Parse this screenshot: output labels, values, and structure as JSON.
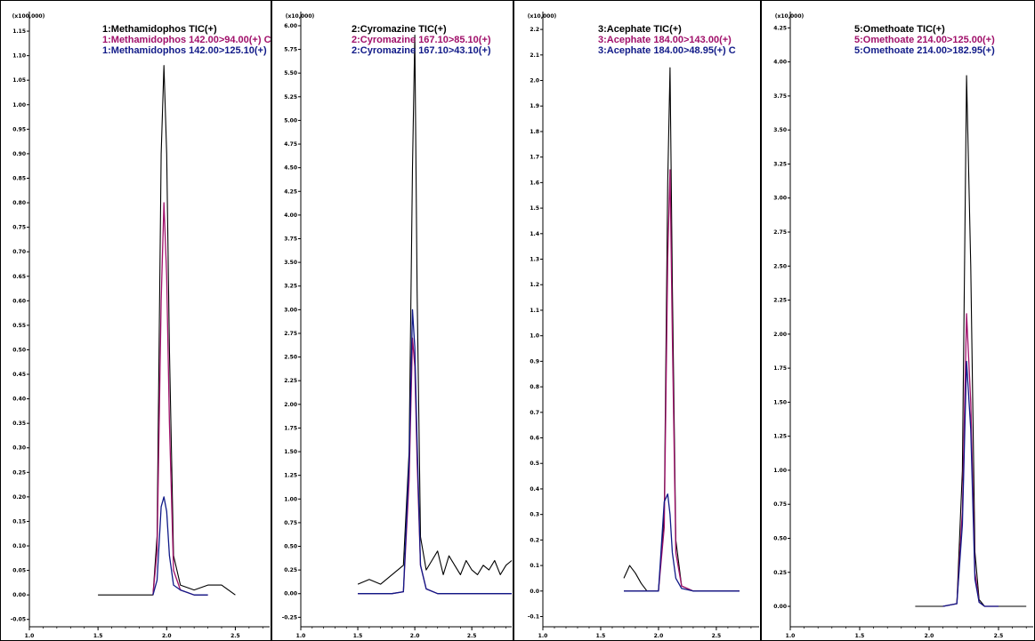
{
  "colors": {
    "tic": "#000000",
    "quant": "#a0106a",
    "qual": "#101a88",
    "frame": "#000000"
  },
  "chart_data": [
    {
      "type": "line",
      "scale_label": "(x100,000)",
      "ylim": [
        -0.065,
        1.19
      ],
      "xlim": [
        1.0,
        2.75
      ],
      "y_ticks": [
        -0.05,
        0.0,
        0.05,
        0.1,
        0.15,
        0.2,
        0.25,
        0.3,
        0.35,
        0.4,
        0.45,
        0.5,
        0.55,
        0.6,
        0.65,
        0.7,
        0.75,
        0.8,
        0.85,
        0.9,
        0.95,
        1.0,
        1.05,
        1.1,
        1.15
      ],
      "y_tick_labels": [
        "-0.05",
        "0.00",
        "0.05",
        "0.10",
        "0.15",
        "0.20",
        "0.25",
        "0.30",
        "0.35",
        "0.40",
        "0.45",
        "0.50",
        "0.55",
        "0.60",
        "0.65",
        "0.70",
        "0.75",
        "0.80",
        "0.85",
        "0.90",
        "0.95",
        "1.00",
        "1.05",
        "1.10",
        "1.15"
      ],
      "x_ticks": [
        1.0,
        1.5,
        2.0,
        2.5
      ],
      "x_tick_labels": [
        "1.0",
        "1.5",
        "2.0",
        "2.5"
      ],
      "legend": [
        "1:Methamidophos TIC(+)",
        "1:Methamidophos 142.00>94.00(+) C",
        "1:Methamidophos 142.00>125.10(+)"
      ],
      "series": [
        {
          "x": [
            1.5,
            1.9,
            1.93,
            1.96,
            1.98,
            2.0,
            2.02,
            2.05,
            2.1,
            2.2,
            2.3,
            2.4,
            2.5
          ],
          "y": [
            0.0,
            0.0,
            0.12,
            0.9,
            1.08,
            0.9,
            0.5,
            0.08,
            0.02,
            0.01,
            0.02,
            0.02,
            0.0
          ]
        },
        {
          "x": [
            1.9,
            1.93,
            1.96,
            1.98,
            2.0,
            2.02,
            2.05,
            2.1,
            2.2,
            2.3
          ],
          "y": [
            0.0,
            0.09,
            0.6,
            0.8,
            0.65,
            0.35,
            0.05,
            0.01,
            0.0,
            0.0
          ]
        },
        {
          "x": [
            1.9,
            1.93,
            1.96,
            1.98,
            2.0,
            2.02,
            2.05,
            2.1,
            2.2,
            2.3
          ],
          "y": [
            0.0,
            0.03,
            0.18,
            0.2,
            0.17,
            0.08,
            0.02,
            0.01,
            0.0,
            0.0
          ]
        }
      ]
    },
    {
      "type": "line",
      "scale_label": "(x10,000)",
      "ylim": [
        -0.35,
        6.15
      ],
      "xlim": [
        1.0,
        2.85
      ],
      "y_ticks": [
        -0.25,
        0.0,
        0.25,
        0.5,
        0.75,
        1.0,
        1.25,
        1.5,
        1.75,
        2.0,
        2.25,
        2.5,
        2.75,
        3.0,
        3.25,
        3.5,
        3.75,
        4.0,
        4.25,
        4.5,
        4.75,
        5.0,
        5.25,
        5.5,
        5.75,
        6.0
      ],
      "y_tick_labels": [
        "-0.25",
        "0.00",
        "0.25",
        "0.50",
        "0.75",
        "1.00",
        "1.25",
        "1.50",
        "1.75",
        "2.00",
        "2.25",
        "2.50",
        "2.75",
        "3.00",
        "3.25",
        "3.50",
        "3.75",
        "4.00",
        "4.25",
        "4.50",
        "4.75",
        "5.00",
        "5.25",
        "5.50",
        "5.75",
        "6.00"
      ],
      "x_ticks": [
        1.0,
        1.5,
        2.0,
        2.5
      ],
      "x_tick_labels": [
        "1.0",
        "1.5",
        "2.0",
        "2.5"
      ],
      "legend": [
        "2:Cyromazine TIC(+)",
        "2:Cyromazine 167.10>85.10(+)",
        "2:Cyromazine 167.10>43.10(+)"
      ],
      "series": [
        {
          "x": [
            1.5,
            1.6,
            1.7,
            1.8,
            1.9,
            1.95,
            1.98,
            2.0,
            2.02,
            2.05,
            2.1,
            2.15,
            2.2,
            2.25,
            2.3,
            2.35,
            2.4,
            2.45,
            2.5,
            2.55,
            2.6,
            2.65,
            2.7,
            2.75,
            2.8,
            2.85
          ],
          "y": [
            0.1,
            0.15,
            0.1,
            0.2,
            0.3,
            1.5,
            4.5,
            5.9,
            3.2,
            0.6,
            0.25,
            0.35,
            0.45,
            0.2,
            0.4,
            0.3,
            0.2,
            0.35,
            0.25,
            0.2,
            0.3,
            0.25,
            0.35,
            0.2,
            0.3,
            0.35
          ]
        },
        {
          "x": [
            1.5,
            1.8,
            1.9,
            1.95,
            1.98,
            2.0,
            2.02,
            2.05,
            2.1,
            2.2,
            2.5,
            2.85
          ],
          "y": [
            0.0,
            0.0,
            0.02,
            1.2,
            2.7,
            2.4,
            1.4,
            0.3,
            0.05,
            0.0,
            0.0,
            0.0
          ]
        },
        {
          "x": [
            1.5,
            1.8,
            1.9,
            1.95,
            1.98,
            2.0,
            2.02,
            2.05,
            2.1,
            2.2,
            2.5,
            2.85
          ],
          "y": [
            0.0,
            0.0,
            0.02,
            1.4,
            3.0,
            2.6,
            1.6,
            0.3,
            0.05,
            0.0,
            0.0,
            0.0
          ]
        }
      ]
    },
    {
      "type": "line",
      "scale_label": "(x10,000)",
      "ylim": [
        -0.14,
        2.27
      ],
      "xlim": [
        1.0,
        2.87
      ],
      "y_ticks": [
        -0.1,
        0.0,
        0.1,
        0.2,
        0.3,
        0.4,
        0.5,
        0.6,
        0.7,
        0.8,
        0.9,
        1.0,
        1.1,
        1.2,
        1.3,
        1.4,
        1.5,
        1.6,
        1.7,
        1.8,
        1.9,
        2.0,
        2.1,
        2.2
      ],
      "y_tick_labels": [
        "-0.1",
        "0.0",
        "0.1",
        "0.2",
        "0.3",
        "0.4",
        "0.5",
        "0.6",
        "0.7",
        "0.8",
        "0.9",
        "1.0",
        "1.1",
        "1.2",
        "1.3",
        "1.4",
        "1.5",
        "1.6",
        "1.7",
        "1.8",
        "1.9",
        "2.0",
        "2.1",
        "2.2"
      ],
      "x_ticks": [
        1.0,
        1.5,
        2.0,
        2.5
      ],
      "x_tick_labels": [
        "1.0",
        "1.5",
        "2.0",
        "2.5"
      ],
      "legend": [
        "3:Acephate TIC(+)",
        "3:Acephate 184.00>143.00(+)",
        "3:Acephate 184.00>48.95(+) C"
      ],
      "series": [
        {
          "x": [
            1.7,
            1.75,
            1.8,
            1.85,
            1.9,
            2.0,
            2.05,
            2.08,
            2.1,
            2.12,
            2.15,
            2.2,
            2.3,
            2.5,
            2.7
          ],
          "y": [
            0.05,
            0.1,
            0.07,
            0.03,
            0.0,
            0.0,
            0.3,
            1.6,
            2.05,
            1.2,
            0.2,
            0.02,
            0.0,
            0.0,
            0.0
          ]
        },
        {
          "x": [
            1.7,
            1.9,
            2.0,
            2.05,
            2.08,
            2.1,
            2.12,
            2.15,
            2.2,
            2.3,
            2.7
          ],
          "y": [
            0.0,
            0.0,
            0.0,
            0.25,
            1.3,
            1.65,
            1.0,
            0.15,
            0.02,
            0.0,
            0.0
          ]
        },
        {
          "x": [
            1.7,
            1.9,
            2.0,
            2.05,
            2.08,
            2.1,
            2.12,
            2.15,
            2.2,
            2.3,
            2.7
          ],
          "y": [
            0.0,
            0.0,
            0.0,
            0.35,
            0.38,
            0.3,
            0.15,
            0.05,
            0.01,
            0.0,
            0.0
          ]
        }
      ]
    },
    {
      "type": "line",
      "scale_label": "(x10,000)",
      "ylim": [
        -0.15,
        4.37
      ],
      "xlim": [
        1.0,
        2.75
      ],
      "y_ticks": [
        0.0,
        0.25,
        0.5,
        0.75,
        1.0,
        1.25,
        1.5,
        1.75,
        2.0,
        2.25,
        2.5,
        2.75,
        3.0,
        3.25,
        3.5,
        3.75,
        4.0,
        4.25
      ],
      "y_tick_labels": [
        "0.00",
        "0.25",
        "0.50",
        "0.75",
        "1.00",
        "1.25",
        "1.50",
        "1.75",
        "2.00",
        "2.25",
        "2.50",
        "2.75",
        "3.00",
        "3.25",
        "3.50",
        "3.75",
        "4.00",
        "4.25"
      ],
      "x_ticks": [
        1.0,
        1.5,
        2.0,
        2.5
      ],
      "x_tick_labels": [
        "1.0",
        "1.5",
        "2.0",
        "2.5"
      ],
      "legend": [
        "5:Omethoate TIC(+)",
        "5:Omethoate 214.00>125.00(+)",
        "5:Omethoate 214.00>182.95(+)"
      ],
      "series": [
        {
          "x": [
            1.9,
            2.1,
            2.2,
            2.24,
            2.27,
            2.3,
            2.33,
            2.36,
            2.4,
            2.5,
            2.7
          ],
          "y": [
            0.0,
            0.0,
            0.02,
            1.0,
            3.9,
            2.5,
            0.4,
            0.05,
            0.0,
            0.0,
            0.0
          ]
        },
        {
          "x": [
            2.1,
            2.2,
            2.24,
            2.27,
            2.3,
            2.33,
            2.36,
            2.4,
            2.5
          ],
          "y": [
            0.0,
            0.02,
            0.7,
            2.15,
            1.5,
            0.25,
            0.03,
            0.0,
            0.0
          ]
        },
        {
          "x": [
            2.1,
            2.2,
            2.24,
            2.27,
            2.3,
            2.33,
            2.36,
            2.4,
            2.5
          ],
          "y": [
            0.0,
            0.02,
            0.6,
            1.8,
            1.3,
            0.2,
            0.03,
            0.0,
            0.0
          ]
        }
      ]
    }
  ]
}
